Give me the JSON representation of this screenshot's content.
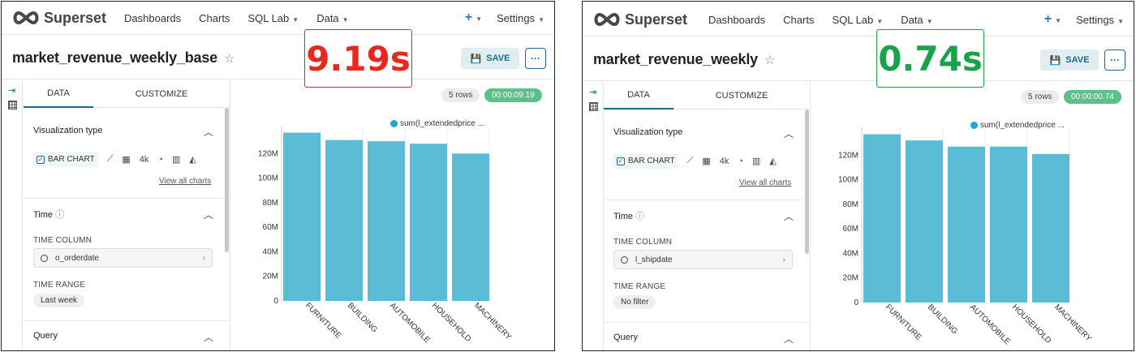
{
  "brand": {
    "name": "Superset"
  },
  "nav": {
    "items": [
      "Dashboards",
      "Charts",
      "SQL Lab",
      "Data"
    ],
    "plus": "+",
    "settings": "Settings"
  },
  "toolbar": {
    "save_label": "SAVE",
    "more_label": "···"
  },
  "tabs": {
    "data": "DATA",
    "customize": "CUSTOMIZE"
  },
  "sections": {
    "viz_type": "Visualization type",
    "bar_chart": "BAR CHART",
    "bignum": "4k",
    "view_all": "View all charts",
    "time": "Time",
    "time_column": "TIME COLUMN",
    "time_range": "TIME RANGE",
    "query": "Query"
  },
  "colors": {
    "bar": "#5bbcd6",
    "slow": "#e8281e",
    "fast": "#1aa34a",
    "accent": "#1a6a8f"
  },
  "panels": [
    {
      "title": "market_revenue_weekly_base",
      "timer": "9.19s",
      "rows": "5 rows",
      "elapsed": "00:00:09.19",
      "time_column_value": "o_orderdate",
      "time_range_value": "Last week",
      "chart_data": {
        "type": "bar",
        "legend": "sum(l_extendedprice ...",
        "categories": [
          "FURNITURE",
          "BUILDING",
          "AUTOMOBILE",
          "HOUSEHOLD",
          "MACHINERY"
        ],
        "values": [
          137,
          131,
          130,
          128,
          120
        ],
        "yticks": [
          "0",
          "20M",
          "40M",
          "60M",
          "80M",
          "100M",
          "120M"
        ],
        "ylim": [
          0,
          140
        ]
      }
    },
    {
      "title": "market_revenue_weekly",
      "timer": "0.74s",
      "rows": "5 rows",
      "elapsed": "00:00:00.74",
      "time_column_value": "l_shipdate",
      "time_range_value": "No filter",
      "chart_data": {
        "type": "bar",
        "legend": "sum(l_extendedprice ...",
        "categories": [
          "FURNITURE",
          "BUILDING",
          "AUTOMOBILE",
          "HOUSEHOLD",
          "MACHINERY"
        ],
        "values": [
          137,
          132,
          127,
          127,
          121
        ],
        "yticks": [
          "0",
          "20M",
          "40M",
          "60M",
          "80M",
          "100M",
          "120M"
        ],
        "ylim": [
          0,
          140
        ]
      }
    }
  ]
}
